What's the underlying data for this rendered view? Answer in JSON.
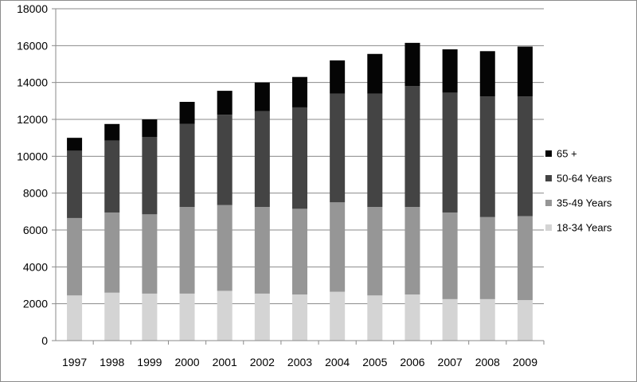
{
  "chart_data": {
    "type": "bar",
    "stacked": true,
    "title": "",
    "xlabel": "",
    "ylabel": "",
    "ylim": [
      0,
      18000
    ],
    "ytick_step": 2000,
    "grid": true,
    "legend_position": "right",
    "categories": [
      "1997",
      "1998",
      "1999",
      "2000",
      "2001",
      "2002",
      "2003",
      "2004",
      "2005",
      "2006",
      "2007",
      "2008",
      "2009"
    ],
    "series": [
      {
        "name": "18-34 Years",
        "color": "#d4d4d4",
        "values": [
          2450,
          2600,
          2550,
          2550,
          2700,
          2550,
          2500,
          2650,
          2450,
          2500,
          2250,
          2250,
          2200
        ]
      },
      {
        "name": "35-49 Years",
        "color": "#969696",
        "values": [
          4200,
          4350,
          4300,
          4700,
          4650,
          4700,
          4650,
          4850,
          4800,
          4750,
          4700,
          4450,
          4550
        ]
      },
      {
        "name": "50-64 Years",
        "color": "#444444",
        "values": [
          3650,
          3900,
          4200,
          4500,
          4900,
          5200,
          5500,
          5900,
          6150,
          6550,
          6500,
          6550,
          6500
        ]
      },
      {
        "name": "65 +",
        "color": "#050505",
        "values": [
          700,
          900,
          950,
          1200,
          1300,
          1550,
          1650,
          1800,
          2150,
          2350,
          2350,
          2450,
          2700
        ]
      }
    ]
  }
}
